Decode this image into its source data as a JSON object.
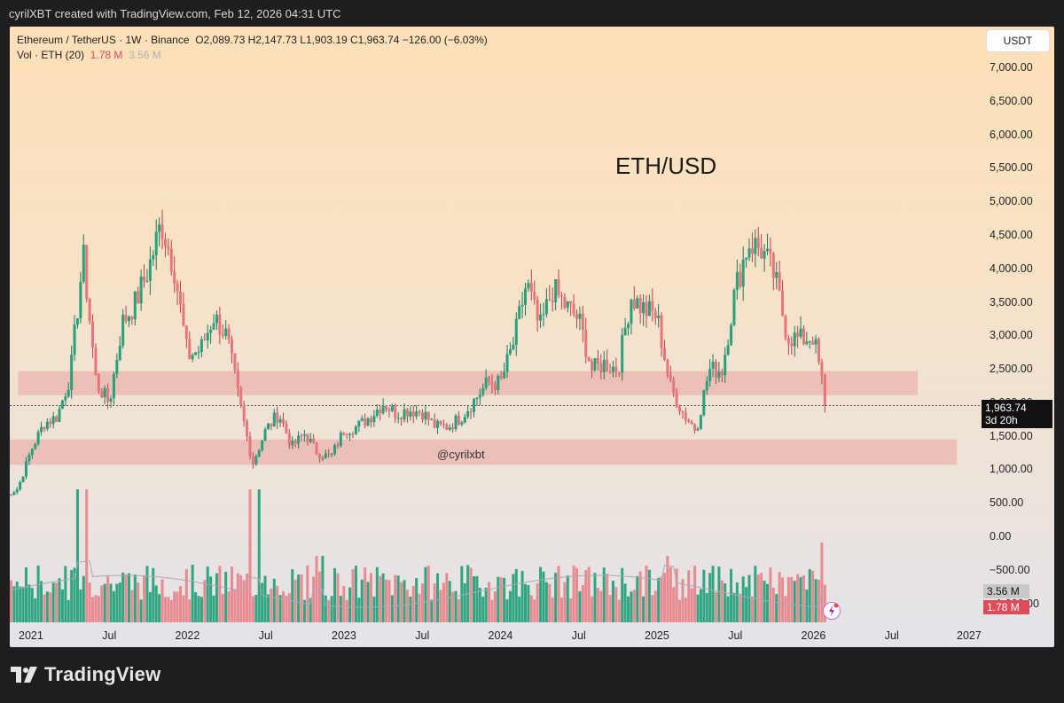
{
  "header": {
    "attribution": "cyrilXBT created with TradingView.com, Feb 12, 2026 04:31 UTC"
  },
  "footer": {
    "brand": "TradingView"
  },
  "legend": {
    "symbol": "Ethereum / TetherUS · 1W · Binance",
    "ohlc": "O2,089.73  H2,147.73  L1,903.19  C1,963.74  −126.00 (−6.03%)",
    "vol_label": "Vol · ETH (20)",
    "vol_value": "1.78 M",
    "vol_ma": "3.56 M"
  },
  "currency_button": "USDT",
  "price_tag": {
    "price": "1,963.74",
    "countdown": "3d 20h"
  },
  "volume_tags": {
    "ma": "3.56 M",
    "current": "1.78 M"
  },
  "colors": {
    "up": "#26a17b",
    "down": "#e8747c",
    "band": "#e7a8a4",
    "bg_top": "#fde0b8",
    "bg_bottom": "#e4e3e9"
  },
  "chart_data": {
    "type": "candlestick",
    "title": "ETH/USD",
    "annotation": "@cyrilxbt",
    "y_ticks": [
      "7,000.00",
      "6,500.00",
      "6,000.00",
      "5,500.00",
      "5,000.00",
      "4,500.00",
      "4,000.00",
      "3,500.00",
      "3,000.00",
      "2,500.00",
      "2,000.00",
      "1,500.00",
      "1,000.00",
      "500.00",
      "0.00",
      "−500.00",
      "−1,000.00"
    ],
    "x_ticks": [
      "2021",
      "Jul",
      "2022",
      "Jul",
      "2023",
      "Jul",
      "2024",
      "Jul",
      "2025",
      "Jul",
      "2026",
      "Jul",
      "2027"
    ],
    "ylim": [
      -1000,
      7500
    ],
    "zones": [
      {
        "name": "resistance",
        "low": 2120,
        "high": 2480,
        "x_start": "2020-12",
        "x_end": "2026-09"
      },
      {
        "name": "support",
        "low": 1080,
        "high": 1460,
        "x_start": "2020-10",
        "x_end": "2026-12"
      }
    ],
    "last_close": 1963.74,
    "price_path": [
      [
        "2020-11",
        600
      ],
      [
        "2020-12",
        730
      ],
      [
        "2021-01",
        1300
      ],
      [
        "2021-02",
        1700
      ],
      [
        "2021-03",
        1800
      ],
      [
        "2021-04",
        2400
      ],
      [
        "2021-05",
        4200
      ],
      [
        "2021-06",
        2300
      ],
      [
        "2021-07",
        2000
      ],
      [
        "2021-08",
        3200
      ],
      [
        "2021-09",
        3500
      ],
      [
        "2021-10",
        4000
      ],
      [
        "2021-11",
        4700
      ],
      [
        "2021-12",
        4000
      ],
      [
        "2022-01",
        2700
      ],
      [
        "2022-02",
        2800
      ],
      [
        "2022-03",
        3300
      ],
      [
        "2022-04",
        3000
      ],
      [
        "2022-05",
        2000
      ],
      [
        "2022-06",
        1100
      ],
      [
        "2022-07",
        1600
      ],
      [
        "2022-08",
        1850
      ],
      [
        "2022-09",
        1350
      ],
      [
        "2022-10",
        1550
      ],
      [
        "2022-11",
        1250
      ],
      [
        "2022-12",
        1200
      ],
      [
        "2023-01",
        1600
      ],
      [
        "2023-02",
        1650
      ],
      [
        "2023-03",
        1800
      ],
      [
        "2023-04",
        2000
      ],
      [
        "2023-05",
        1850
      ],
      [
        "2023-06",
        1900
      ],
      [
        "2023-07",
        1870
      ],
      [
        "2023-08",
        1650
      ],
      [
        "2023-09",
        1650
      ],
      [
        "2023-10",
        1800
      ],
      [
        "2023-11",
        2050
      ],
      [
        "2023-12",
        2300
      ],
      [
        "2024-01",
        2300
      ],
      [
        "2024-02",
        2900
      ],
      [
        "2024-03",
        3800
      ],
      [
        "2024-04",
        3100
      ],
      [
        "2024-05",
        3700
      ],
      [
        "2024-06",
        3450
      ],
      [
        "2024-07",
        3250
      ],
      [
        "2024-08",
        2500
      ],
      [
        "2024-09",
        2600
      ],
      [
        "2024-10",
        2500
      ],
      [
        "2024-11",
        3600
      ],
      [
        "2024-12",
        3400
      ],
      [
        "2025-01",
        3300
      ],
      [
        "2025-02",
        2250
      ],
      [
        "2025-03",
        1850
      ],
      [
        "2025-04",
        1600
      ],
      [
        "2025-05",
        2500
      ],
      [
        "2025-06",
        2500
      ],
      [
        "2025-07",
        3700
      ],
      [
        "2025-08",
        4400
      ],
      [
        "2025-09",
        4300
      ],
      [
        "2025-10",
        3900
      ],
      [
        "2025-11",
        3000
      ],
      [
        "2025-12",
        2950
      ],
      [
        "2026-01",
        3000
      ],
      [
        "2026-02",
        1964
      ]
    ],
    "volume_peaks": [
      [
        "2021-05",
        "high"
      ],
      [
        "2022-06",
        "high"
      ],
      [
        "2022-11",
        "medium"
      ],
      [
        "2025-02",
        "medium"
      ],
      [
        "2026-02",
        "high"
      ]
    ],
    "volume_current": "1.78 M",
    "volume_ma": "3.56 M"
  }
}
